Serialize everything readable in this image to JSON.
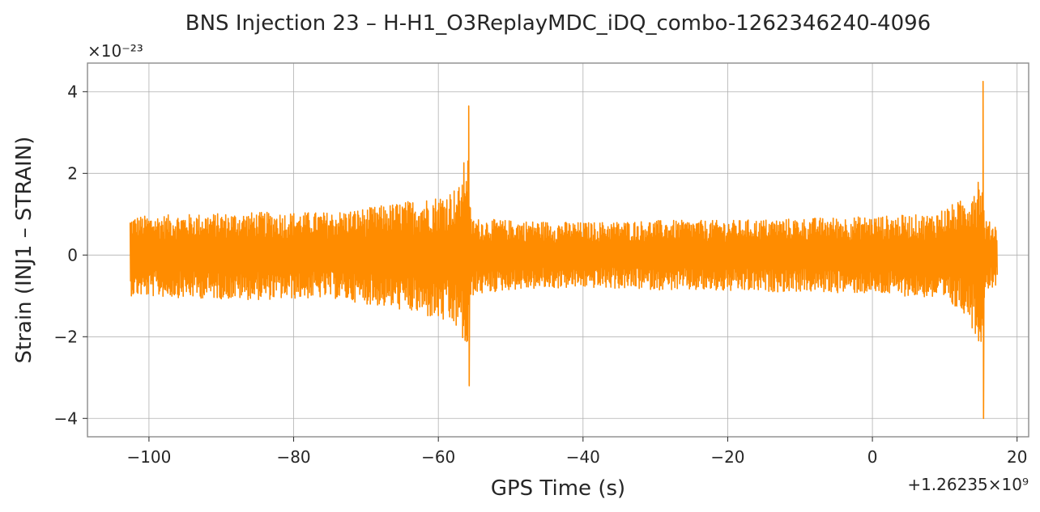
{
  "chart_data": {
    "type": "line",
    "title": "BNS Injection 23 – H-H1_O3ReplayMDC_iDQ_combo-1262346240-4096",
    "xlabel": "GPS Time (s)",
    "ylabel": "Strain (INJ1 – STRAIN)",
    "x_offset_text": "+1.26235×10⁹",
    "y_scale_text": "×10⁻²³",
    "xlim": [
      -108.5,
      21.6
    ],
    "ylim": [
      -4.45,
      4.7
    ],
    "x_ticks": [
      -100,
      -80,
      -60,
      -40,
      -20,
      0,
      20
    ],
    "x_tick_labels": [
      "−100",
      "−80",
      "−60",
      "−40",
      "−20",
      "0",
      "20"
    ],
    "y_ticks": [
      -4,
      -2,
      0,
      2,
      4
    ],
    "y_tick_labels": [
      "−4",
      "−2",
      "0",
      "2",
      "4"
    ],
    "grid": true,
    "line_color": "#ff8c00",
    "series": [
      {
        "x_start": -102.6,
        "x_end": 17.3,
        "envelope": [
          {
            "x": -102.6,
            "upper": 0.95,
            "lower": -1.0
          },
          {
            "x": -95,
            "upper": 1.0,
            "lower": -1.05
          },
          {
            "x": -85,
            "upper": 1.05,
            "lower": -1.1
          },
          {
            "x": -75,
            "upper": 1.05,
            "lower": -1.05
          },
          {
            "x": -70,
            "upper": 1.15,
            "lower": -1.2
          },
          {
            "x": -65,
            "upper": 1.3,
            "lower": -1.35
          },
          {
            "x": -60,
            "upper": 1.45,
            "lower": -1.6
          },
          {
            "x": -57,
            "upper": 1.7,
            "lower": -1.85
          },
          {
            "x": -56,
            "upper": 2.8,
            "lower": -2.6
          },
          {
            "x": -55.5,
            "upper": 0.9,
            "lower": -1.0
          },
          {
            "x": -50,
            "upper": 0.85,
            "lower": -0.85
          },
          {
            "x": -40,
            "upper": 0.8,
            "lower": -0.8
          },
          {
            "x": -30,
            "upper": 0.85,
            "lower": -0.85
          },
          {
            "x": -20,
            "upper": 0.85,
            "lower": -0.9
          },
          {
            "x": -10,
            "upper": 0.9,
            "lower": -0.9
          },
          {
            "x": 0,
            "upper": 0.95,
            "lower": -0.95
          },
          {
            "x": 8,
            "upper": 1.0,
            "lower": -1.05
          },
          {
            "x": 13,
            "upper": 1.4,
            "lower": -1.45
          },
          {
            "x": 15,
            "upper": 2.1,
            "lower": -2.3
          },
          {
            "x": 15.6,
            "upper": 0.85,
            "lower": -0.85
          },
          {
            "x": 17.3,
            "upper": 0.75,
            "lower": -0.75
          }
        ],
        "peaks": [
          {
            "x": -55.8,
            "max": 3.65,
            "min": -3.2
          },
          {
            "x": 15.3,
            "max": 4.25,
            "min": -4.0
          }
        ]
      }
    ]
  }
}
